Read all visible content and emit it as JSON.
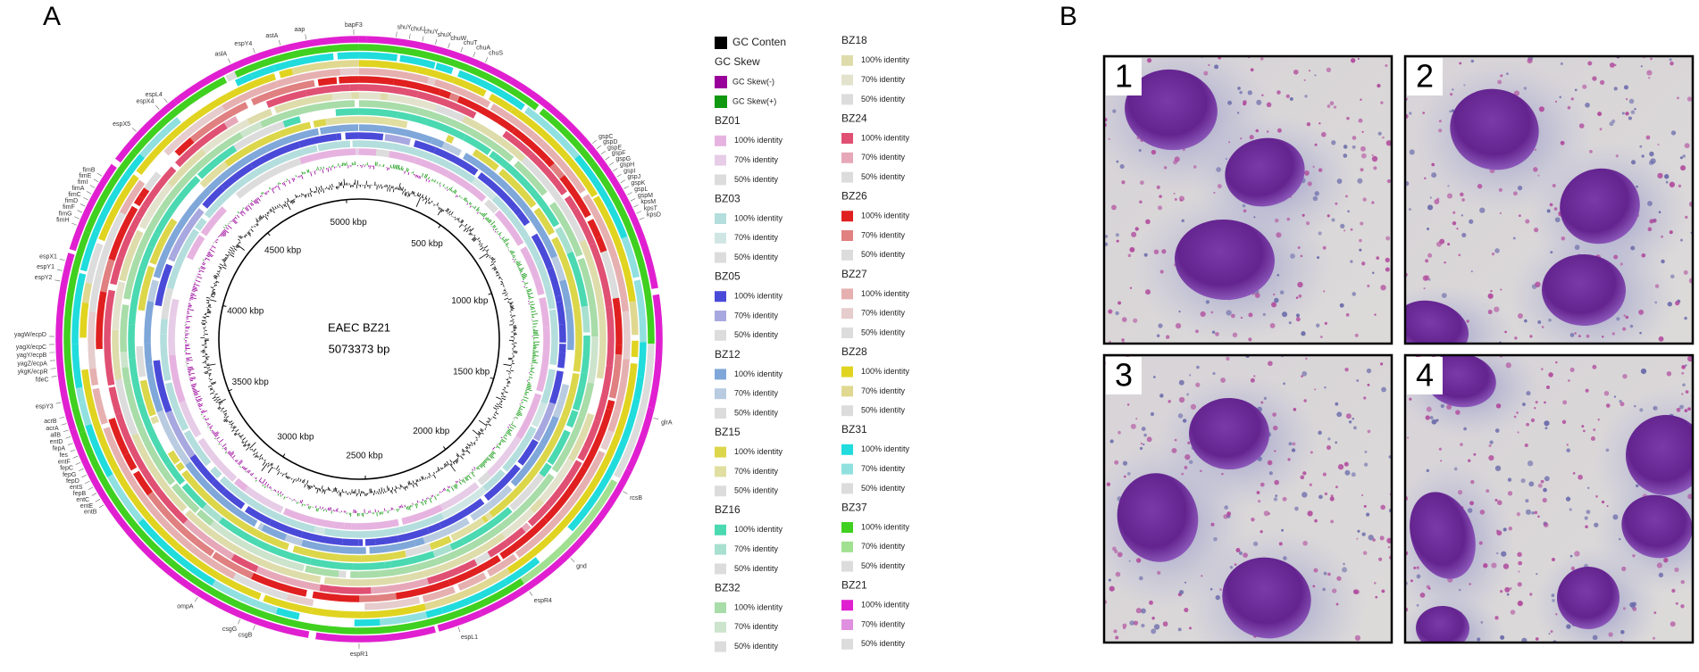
{
  "figure": {
    "panels": [
      "A",
      "B"
    ],
    "map": {
      "name": "EAEC BZ21",
      "genome_length": {
        "value": 5073373,
        "label": "5073373 bp"
      },
      "ticks": [
        {
          "value": 500000,
          "label": "500 kbp"
        },
        {
          "value": 1000000,
          "label": "1000 kbp"
        },
        {
          "value": 1500000,
          "label": "1500 kbp"
        },
        {
          "value": 2000000,
          "label": "2000 kbp"
        },
        {
          "value": 2500000,
          "label": "2500 kbp"
        },
        {
          "value": 3000000,
          "label": "3000 kbp"
        },
        {
          "value": 3500000,
          "label": "3500 kbp"
        },
        {
          "value": 4000000,
          "label": "4000 kbp"
        },
        {
          "value": 4500000,
          "label": "4500 kbp"
        },
        {
          "value": 5000000,
          "label": "5000 kbp"
        }
      ],
      "genes": [
        "aslA",
        "espY4",
        "astA",
        "aap",
        "bapF3",
        "shuY",
        "chuU",
        "chuY",
        "shuX",
        "chuW",
        "chuT",
        "chuA",
        "chuS",
        "gspC",
        "gspD",
        "gspE",
        "gspF",
        "gspG",
        "gspH",
        "gspI",
        "gspJ",
        "gspK",
        "gspL",
        "gspM",
        "kpsM",
        "kpsT",
        "kpsD",
        "glrA",
        "rcsB",
        "gnd",
        "espR4",
        "espL1",
        "espR1",
        "csgB",
        "csgG",
        "ompA",
        "entB",
        "entE",
        "entC",
        "fepB",
        "entS",
        "fepD",
        "fepG",
        "fepC",
        "entF",
        "fes",
        "fepA",
        "entD",
        "allB",
        "acrA",
        "acrB",
        "espY3",
        "fdeC",
        "ykgK/ecpR",
        "yagZ/ecpA",
        "yagY/ecpB",
        "yagX/ecpC",
        "yagW/ecpD",
        "espY2",
        "espY1",
        "espX1",
        "fimH",
        "fimG",
        "fimF",
        "fimD",
        "fimC",
        "fimA",
        "fimI",
        "fimE",
        "fimB",
        "espX5",
        "espX4",
        "espL4"
      ],
      "highlight_gene_color": "#e03030"
    },
    "legend": {
      "gc_content": {
        "label": "GC Conten",
        "color": "#000000"
      },
      "gc_skew": {
        "title": "GC Skew",
        "entries": [
          {
            "label": "GC Skew(-)",
            "color": "#990099"
          },
          {
            "label": "GC Skew(+)",
            "color": "#109910"
          }
        ]
      },
      "groups": [
        {
          "name": "BZ01",
          "entries": [
            {
              "label": "100% identity",
              "color": "#e6b3e0"
            },
            {
              "label": "70% identity",
              "color": "#e6cce6"
            },
            {
              "label": "50% identity",
              "color": "#dcdcdc"
            }
          ]
        },
        {
          "name": "BZ03",
          "entries": [
            {
              "label": "100% identity",
              "color": "#b3dedd"
            },
            {
              "label": "70% identity",
              "color": "#cfe6e4"
            },
            {
              "label": "50% identity",
              "color": "#dcdcdc"
            }
          ]
        },
        {
          "name": "BZ05",
          "entries": [
            {
              "label": "100% identity",
              "color": "#4a4ad9"
            },
            {
              "label": "70% identity",
              "color": "#a8a8e0"
            },
            {
              "label": "50% identity",
              "color": "#dcdcdc"
            }
          ]
        },
        {
          "name": "BZ12",
          "entries": [
            {
              "label": "100% identity",
              "color": "#7fa7d9"
            },
            {
              "label": "70% identity",
              "color": "#b8cbe0"
            },
            {
              "label": "50% identity",
              "color": "#dcdcdc"
            }
          ]
        },
        {
          "name": "BZ15",
          "entries": [
            {
              "label": "100% identity",
              "color": "#dcd64a"
            },
            {
              "label": "70% identity",
              "color": "#e0dea0"
            },
            {
              "label": "50% identity",
              "color": "#dcdcdc"
            }
          ]
        },
        {
          "name": "BZ16",
          "entries": [
            {
              "label": "100% identity",
              "color": "#4ad9b0"
            },
            {
              "label": "70% identity",
              "color": "#a8e0d0"
            },
            {
              "label": "50% identity",
              "color": "#dcdcdc"
            }
          ]
        },
        {
          "name": "BZ32",
          "entries": [
            {
              "label": "100% identity",
              "color": "#a8dca8"
            },
            {
              "label": "70% identity",
              "color": "#cce3cc"
            },
            {
              "label": "50% identity",
              "color": "#dcdcdc"
            }
          ]
        },
        {
          "name": "BZ18",
          "entries": [
            {
              "label": "100% identity",
              "color": "#dedcaa"
            },
            {
              "label": "70% identity",
              "color": "#e3e2cc"
            },
            {
              "label": "50% identity",
              "color": "#dcdcdc"
            }
          ]
        },
        {
          "name": "BZ24",
          "entries": [
            {
              "label": "100% identity",
              "color": "#e05073"
            },
            {
              "label": "70% identity",
              "color": "#e6a8b8"
            },
            {
              "label": "50% identity",
              "color": "#dcdcdc"
            }
          ]
        },
        {
          "name": "BZ26",
          "entries": [
            {
              "label": "100% identity",
              "color": "#e02020"
            },
            {
              "label": "70% identity",
              "color": "#e08080"
            },
            {
              "label": "50% identity",
              "color": "#dcdcdc"
            }
          ]
        },
        {
          "name": "BZ27",
          "entries": [
            {
              "label": "100% identity",
              "color": "#e6b0b0"
            },
            {
              "label": "70% identity",
              "color": "#e6cccc"
            },
            {
              "label": "50% identity",
              "color": "#dcdcdc"
            }
          ]
        },
        {
          "name": "BZ28",
          "entries": [
            {
              "label": "100% identity",
              "color": "#e0d420"
            },
            {
              "label": "70% identity",
              "color": "#e0d890"
            },
            {
              "label": "50% identity",
              "color": "#dcdcdc"
            }
          ]
        },
        {
          "name": "BZ31",
          "entries": [
            {
              "label": "100% identity",
              "color": "#20dcdc"
            },
            {
              "label": "70% identity",
              "color": "#90e0e0"
            },
            {
              "label": "50% identity",
              "color": "#dcdcdc"
            }
          ]
        },
        {
          "name": "BZ37",
          "entries": [
            {
              "label": "100% identity",
              "color": "#40d020"
            },
            {
              "label": "70% identity",
              "color": "#a0e090"
            },
            {
              "label": "50% identity",
              "color": "#dcdcdc"
            }
          ]
        },
        {
          "name": "BZ21",
          "entries": [
            {
              "label": "100% identity",
              "color": "#e020d0"
            },
            {
              "label": "70% identity",
              "color": "#e090e0"
            },
            {
              "label": "50% identity",
              "color": "#dcdcdc"
            }
          ]
        }
      ]
    },
    "micrographs": [
      "1",
      "2",
      "3",
      "4"
    ]
  }
}
